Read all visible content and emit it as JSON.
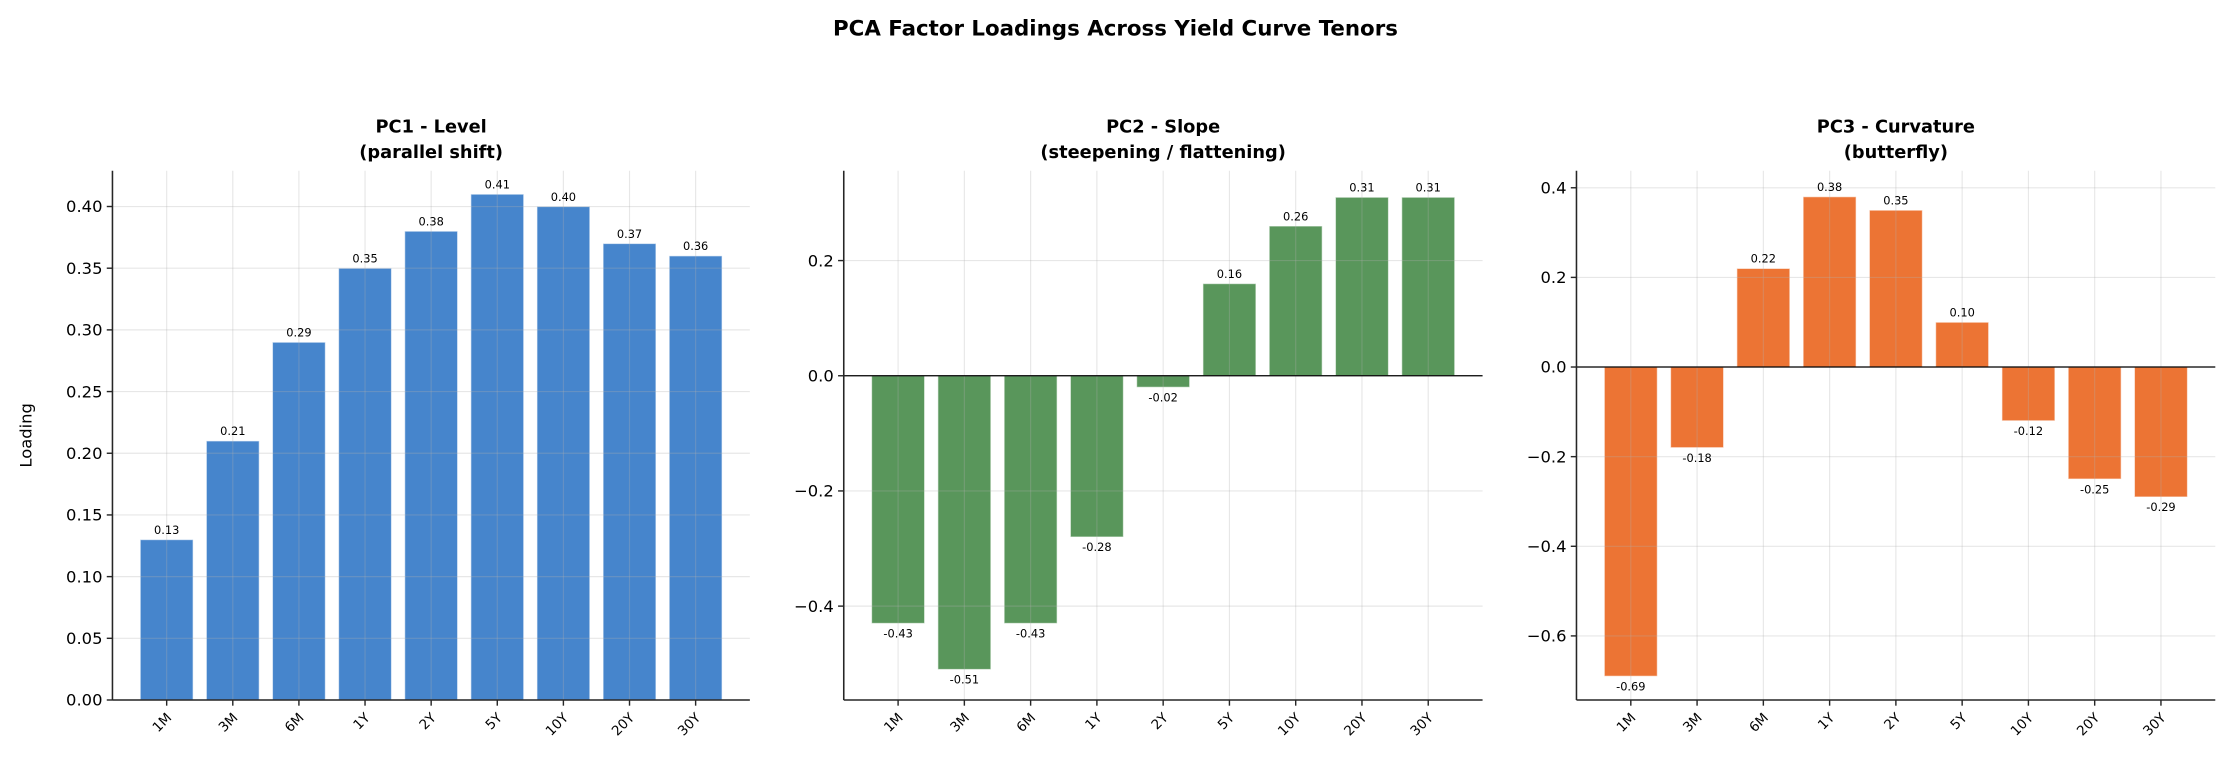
{
  "chart_data": {
    "title": "PCA Factor Loadings Across Yield Curve Tenors",
    "panels": [
      {
        "type": "bar",
        "title_line1": "PC1 - Level",
        "title_line2": "(parallel shift)",
        "ylabel": "Loading",
        "xlabel": "",
        "categories": [
          "1M",
          "3M",
          "6M",
          "1Y",
          "2Y",
          "5Y",
          "10Y",
          "20Y",
          "30Y"
        ],
        "values": [
          0.13,
          0.21,
          0.29,
          0.35,
          0.38,
          0.41,
          0.4,
          0.37,
          0.36
        ],
        "data_labels": [
          "0.13",
          "0.21",
          "0.29",
          "0.35",
          "0.38",
          "0.41",
          "0.40",
          "0.37",
          "0.36"
        ],
        "ylim": [
          0,
          0.429
        ],
        "yticks": [
          0.0,
          0.05,
          0.1,
          0.15,
          0.2,
          0.25,
          0.3,
          0.35,
          0.4
        ],
        "ytick_labels": [
          "0.00",
          "0.05",
          "0.10",
          "0.15",
          "0.20",
          "0.25",
          "0.30",
          "0.35",
          "0.40"
        ],
        "color": "#4685cc",
        "grid": true,
        "zero_line": false
      },
      {
        "type": "bar",
        "title_line1": "PC2 - Slope",
        "title_line2": "(steepening / flattening)",
        "ylabel": "",
        "xlabel": "",
        "categories": [
          "1M",
          "3M",
          "6M",
          "1Y",
          "2Y",
          "5Y",
          "10Y",
          "20Y",
          "30Y"
        ],
        "values": [
          -0.43,
          -0.51,
          -0.43,
          -0.28,
          -0.02,
          0.16,
          0.26,
          0.31,
          0.31
        ],
        "data_labels": [
          "-0.43",
          "-0.51",
          "-0.43",
          "-0.28",
          "-0.02",
          "0.16",
          "0.26",
          "0.31",
          "0.31"
        ],
        "ylim": [
          -0.563,
          0.356
        ],
        "yticks": [
          -0.4,
          -0.2,
          0.0,
          0.2
        ],
        "ytick_labels": [
          "−0.4",
          "−0.2",
          "0.0",
          "0.2"
        ],
        "color": "#59965b",
        "grid": true,
        "zero_line": true
      },
      {
        "type": "bar",
        "title_line1": "PC3 - Curvature",
        "title_line2": "(butterfly)",
        "ylabel": "",
        "xlabel": "",
        "categories": [
          "1M",
          "3M",
          "6M",
          "1Y",
          "2Y",
          "5Y",
          "10Y",
          "20Y",
          "30Y"
        ],
        "values": [
          -0.69,
          -0.18,
          0.22,
          0.38,
          0.35,
          0.1,
          -0.12,
          -0.25,
          -0.29
        ],
        "data_labels": [
          "-0.69",
          "-0.18",
          "0.22",
          "0.38",
          "0.35",
          "0.10",
          "-0.12",
          "-0.25",
          "-0.29"
        ],
        "ylim": [
          -0.743,
          0.438
        ],
        "yticks": [
          -0.6,
          -0.4,
          -0.2,
          0.0,
          0.2,
          0.4
        ],
        "ytick_labels": [
          "−0.6",
          "−0.4",
          "−0.2",
          "0.0",
          "0.2",
          "0.4"
        ],
        "color": "#ec7434",
        "grid": true,
        "zero_line": true
      }
    ]
  }
}
